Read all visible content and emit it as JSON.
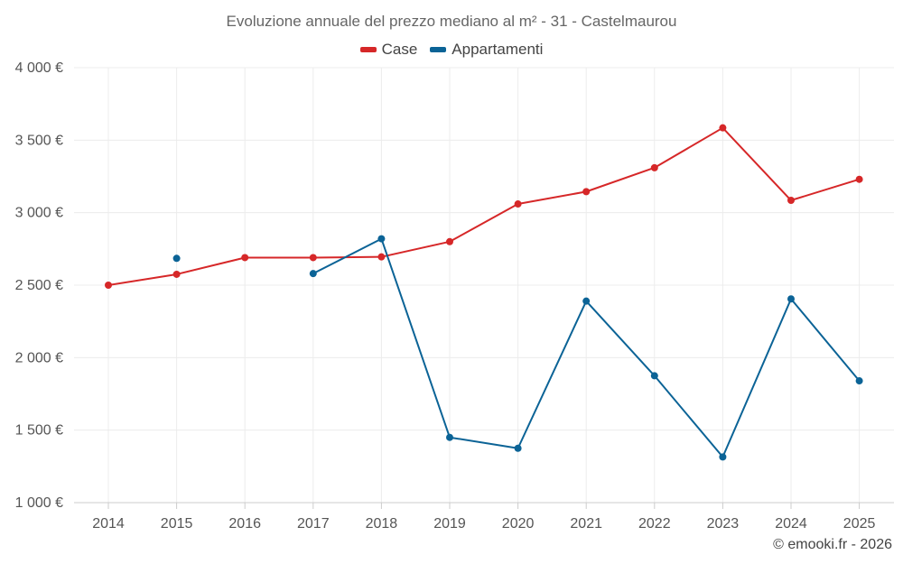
{
  "chart_data": {
    "type": "line",
    "title": "Evoluzione annuale del prezzo mediano al m² - 31 - Castelmaurou",
    "x": [
      "2014",
      "2015",
      "2016",
      "2017",
      "2018",
      "2019",
      "2020",
      "2021",
      "2022",
      "2023",
      "2024",
      "2025"
    ],
    "series": [
      {
        "name": "Case",
        "color": "#d62728",
        "values": [
          2500,
          2575,
          2690,
          2690,
          2695,
          2800,
          3060,
          3145,
          3310,
          3585,
          3085,
          3230
        ]
      },
      {
        "name": "Appartamenti",
        "color": "#0b6396",
        "values": [
          null,
          2685,
          null,
          2580,
          2820,
          1450,
          1375,
          2390,
          1875,
          1315,
          2405,
          1840
        ]
      }
    ],
    "ylim": [
      1000,
      4000
    ],
    "y_ticks": [
      1000,
      1500,
      2000,
      2500,
      3000,
      3500,
      4000
    ],
    "y_tick_labels": [
      "1 000 €",
      "1 500 €",
      "2 000 €",
      "2 500 €",
      "3 000 €",
      "3 500 €",
      "4 000 €"
    ],
    "legend_position": "top-center",
    "grid": true
  },
  "credit": "© emooki.fr - 2026"
}
